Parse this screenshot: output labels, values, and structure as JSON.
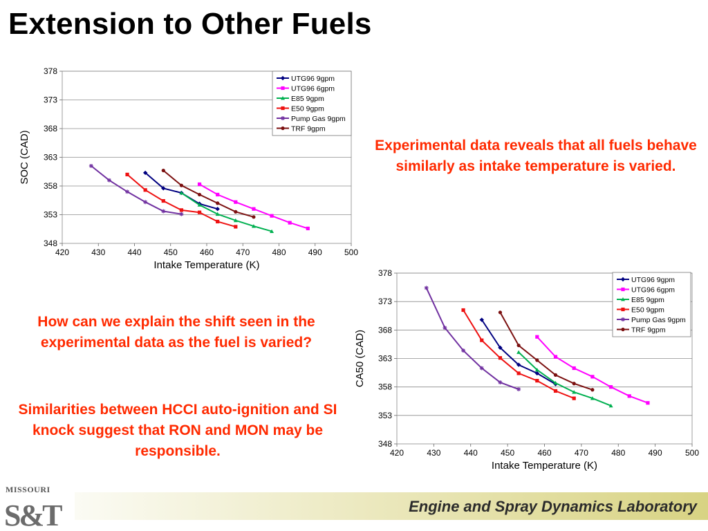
{
  "slide": {
    "title": "Extension to Other Fuels",
    "note_right": "Experimental data reveals that all fuels behave similarly as intake temperature is varied.",
    "note_left_1": "How can we explain the shift seen in the experimental data as the fuel is varied?",
    "note_left_2": "Similarities between HCCI auto-ignition and SI knock suggest that RON and MON may be responsible.",
    "footer": "Engine and Spray Dynamics Laboratory",
    "logo_top": "MISSOURI",
    "logo_main": "S&T"
  },
  "colors": {
    "accent_text": "#ff2a00",
    "UTG96 9gpm": "#000080",
    "UTG96 6gpm": "#ff00ff",
    "E85 9gpm": "#00b050",
    "E50 9gpm": "#ee1111",
    "Pump Gas 9gpm": "#7030a0",
    "TRF 9gpm": "#7b1010"
  },
  "chart_data": [
    {
      "type": "line",
      "xlabel": "Intake Temperature (K)",
      "ylabel": "SOC (CAD)",
      "xlim": [
        420,
        500
      ],
      "ylim": [
        348,
        378
      ],
      "xticks": [
        420,
        430,
        440,
        450,
        460,
        470,
        480,
        490,
        500
      ],
      "yticks": [
        348,
        353,
        358,
        363,
        368,
        373,
        378
      ],
      "grid": "horizontal",
      "legend": "top-right",
      "series": [
        {
          "name": "UTG96 9gpm",
          "x": [
            443,
            448,
            453,
            458,
            463
          ],
          "y": [
            360.3,
            357.6,
            356.8,
            354.9,
            354.0
          ]
        },
        {
          "name": "UTG96 6gpm",
          "x": [
            458,
            463,
            468,
            473,
            478,
            483,
            488
          ],
          "y": [
            358.3,
            356.5,
            355.2,
            354.0,
            352.8,
            351.6,
            350.6
          ]
        },
        {
          "name": "E85 9gpm",
          "x": [
            453,
            458,
            463,
            468,
            473,
            478
          ],
          "y": [
            356.8,
            354.7,
            353.1,
            352.0,
            351.0,
            350.1
          ]
        },
        {
          "name": "E50 9gpm",
          "x": [
            438,
            443,
            448,
            453,
            458,
            463,
            468
          ],
          "y": [
            360.0,
            357.3,
            355.4,
            353.8,
            353.4,
            351.8,
            350.9
          ]
        },
        {
          "name": "Pump Gas 9gpm",
          "x": [
            428,
            433,
            438,
            443,
            448,
            453
          ],
          "y": [
            361.5,
            359.0,
            357.0,
            355.2,
            353.6,
            353.1
          ]
        },
        {
          "name": "TRF 9gpm",
          "x": [
            448,
            453,
            458,
            463,
            468,
            473
          ],
          "y": [
            360.7,
            358.1,
            356.5,
            355.0,
            353.5,
            352.6
          ]
        }
      ]
    },
    {
      "type": "line",
      "xlabel": "Intake Temperature (K)",
      "ylabel": "CA50 (CAD)",
      "xlim": [
        420,
        500
      ],
      "ylim": [
        348,
        378
      ],
      "xticks": [
        420,
        430,
        440,
        450,
        460,
        470,
        480,
        490,
        500
      ],
      "yticks": [
        348,
        353,
        358,
        363,
        368,
        373,
        378
      ],
      "grid": "horizontal",
      "legend": "top-right",
      "series": [
        {
          "name": "UTG96 9gpm",
          "x": [
            443,
            448,
            453,
            458,
            463
          ],
          "y": [
            369.8,
            364.9,
            361.9,
            360.4,
            358.5
          ]
        },
        {
          "name": "UTG96 6gpm",
          "x": [
            458,
            463,
            468,
            473,
            478,
            483,
            488
          ],
          "y": [
            366.8,
            363.3,
            361.3,
            359.8,
            358.0,
            356.4,
            355.2
          ]
        },
        {
          "name": "E85 9gpm",
          "x": [
            453,
            458,
            463,
            468,
            473,
            478
          ],
          "y": [
            364.1,
            361.0,
            358.7,
            357.1,
            356.0,
            354.7
          ]
        },
        {
          "name": "E50 9gpm",
          "x": [
            438,
            443,
            448,
            453,
            458,
            463,
            468
          ],
          "y": [
            371.5,
            366.2,
            363.1,
            360.4,
            359.1,
            357.3,
            356.0
          ]
        },
        {
          "name": "Pump Gas 9gpm",
          "x": [
            428,
            433,
            438,
            443,
            448,
            453
          ],
          "y": [
            375.4,
            368.4,
            364.4,
            361.3,
            358.8,
            357.6
          ]
        },
        {
          "name": "TRF 9gpm",
          "x": [
            448,
            453,
            458,
            463,
            468,
            473
          ],
          "y": [
            371.1,
            365.3,
            362.7,
            360.1,
            358.6,
            357.5
          ]
        }
      ]
    }
  ]
}
